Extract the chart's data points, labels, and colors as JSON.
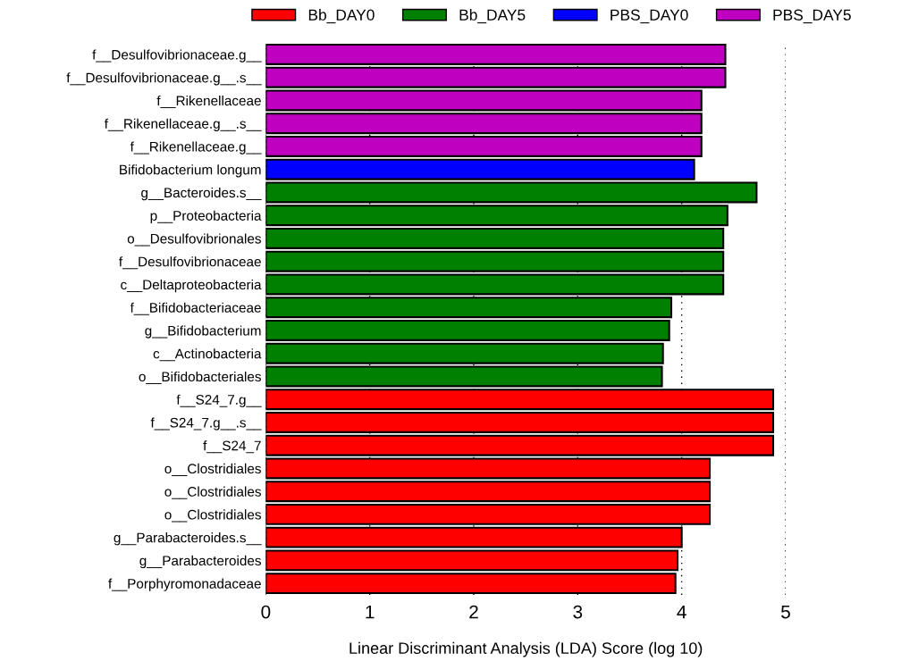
{
  "chart_data": {
    "type": "bar",
    "orientation": "horizontal",
    "xlabel": "Linear Discriminant Analysis (LDA) Score (log 10)",
    "categories": [
      "f__Desulfovibrionaceae.g__",
      "f__Desulfovibrionaceae.g__.s__",
      "f__Rikenellaceae",
      "f__Rikenellaceae.g__.s__",
      "f__Rikenellaceae.g__",
      "Bifidobacterium longum",
      "g__Bacteroides.s__",
      "p__Proteobacteria",
      "o__Desulfovibrionales",
      "f__Desulfovibrionaceae",
      "c__Deltaproteobacteria",
      "f__Bifidobacteriaceae",
      "g__Bifidobacterium",
      "c__Actinobacteria",
      "o__Bifidobacteriales",
      "f__S24_7.g__",
      "f__S24_7.g__.s__",
      "f__S24_7",
      "o__Clostridiales",
      "o__Clostridiales",
      "o__Clostridiales",
      "g__Parabacteroides.s__",
      "g__Parabacteroides",
      "f__Porphyromonadaceae"
    ],
    "series": [
      {
        "name": "Bb_DAY0",
        "color": "#ff0000",
        "values": [
          null,
          null,
          null,
          null,
          null,
          null,
          null,
          null,
          null,
          null,
          null,
          null,
          null,
          null,
          null,
          4.88,
          4.88,
          4.88,
          4.27,
          4.27,
          4.27,
          4.0,
          3.96,
          3.94
        ]
      },
      {
        "name": "Bb_DAY5",
        "color": "#008000",
        "values": [
          null,
          null,
          null,
          null,
          null,
          null,
          4.72,
          4.44,
          4.4,
          4.4,
          4.4,
          3.9,
          3.88,
          3.82,
          3.81,
          null,
          null,
          null,
          null,
          null,
          null,
          null,
          null,
          null
        ]
      },
      {
        "name": "PBS_DAY0",
        "color": "#0000ff",
        "values": [
          null,
          null,
          null,
          null,
          null,
          4.12,
          null,
          null,
          null,
          null,
          null,
          null,
          null,
          null,
          null,
          null,
          null,
          null,
          null,
          null,
          null,
          null,
          null,
          null
        ]
      },
      {
        "name": "PBS_DAY5",
        "color": "#c000c0",
        "values": [
          4.42,
          4.42,
          4.19,
          4.19,
          4.19,
          null,
          null,
          null,
          null,
          null,
          null,
          null,
          null,
          null,
          null,
          null,
          null,
          null,
          null,
          null,
          null,
          null,
          null,
          null
        ]
      }
    ],
    "xlim": [
      0,
      5
    ],
    "xticks": [
      0,
      1,
      2,
      3,
      4,
      5
    ],
    "grid": "x",
    "legend": "top"
  }
}
